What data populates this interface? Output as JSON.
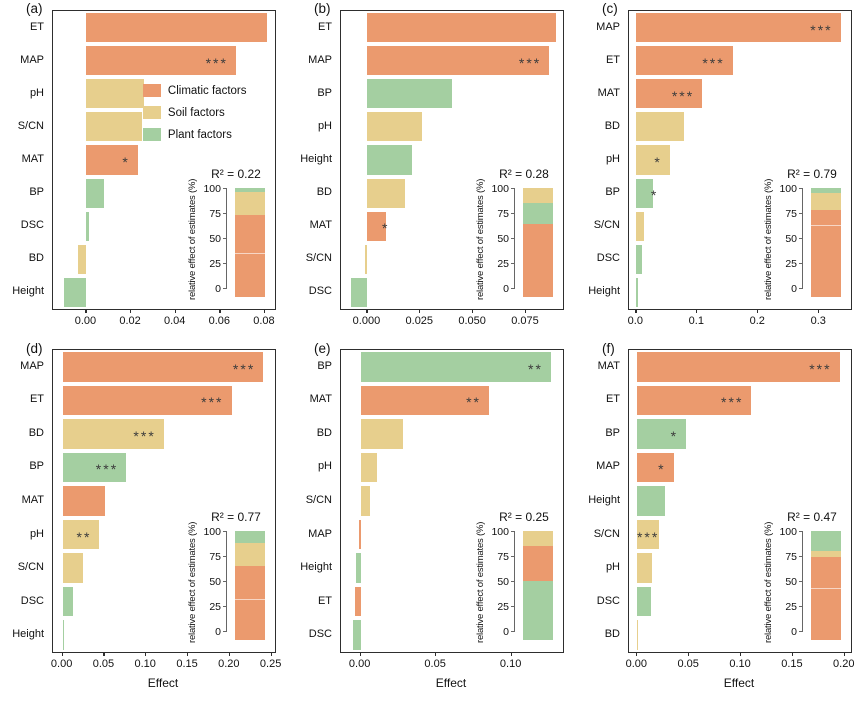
{
  "figure": {
    "background": "#ffffff"
  },
  "colors": {
    "climatic": "#EB9A6E",
    "soil": "#E7CF8D",
    "plant": "#A4CFA1"
  },
  "legend": {
    "items": [
      {
        "label": "Climatic factors",
        "group": "climatic"
      },
      {
        "label": "Soil factors",
        "group": "soil"
      },
      {
        "label": "Plant factors",
        "group": "plant"
      }
    ]
  },
  "inset": {
    "ylabel": "relative effect of estimates (%)",
    "yticks": [
      0,
      25,
      50,
      75,
      100
    ]
  },
  "chart_data": [
    {
      "type": "bar",
      "panel": "(a)",
      "orientation": "horizontal",
      "xlabel": "",
      "r2_label": "R² = 0.22",
      "show_legend": true,
      "xlim": [
        -0.015,
        0.0845
      ],
      "xticks": [
        {
          "v": 0,
          "label": "0.00"
        },
        {
          "v": 0.02,
          "label": "0.02"
        },
        {
          "v": 0.04,
          "label": "0.04"
        },
        {
          "v": 0.06,
          "label": "0.06"
        },
        {
          "v": 0.08,
          "label": "0.08"
        }
      ],
      "bars": [
        {
          "cat": "ET",
          "value": 0.081,
          "group": "climatic",
          "sig": ""
        },
        {
          "cat": "MAP",
          "value": 0.067,
          "group": "climatic",
          "sig": "***"
        },
        {
          "cat": "pH",
          "value": 0.026,
          "group": "soil",
          "sig": ""
        },
        {
          "cat": "S/CN",
          "value": 0.025,
          "group": "soil",
          "sig": ""
        },
        {
          "cat": "MAT",
          "value": 0.023,
          "group": "climatic",
          "sig": "*"
        },
        {
          "cat": "BP",
          "value": 0.008,
          "group": "plant",
          "sig": ""
        },
        {
          "cat": "DSC",
          "value": 0.001,
          "group": "plant",
          "sig": ""
        },
        {
          "cat": "BD",
          "value": -0.004,
          "group": "soil",
          "sig": ""
        },
        {
          "cat": "Height",
          "value": -0.01,
          "group": "plant",
          "sig": ""
        }
      ],
      "inset_stack": [
        {
          "group": "climatic",
          "pct": 73
        },
        {
          "group": "soil",
          "pct": 23
        },
        {
          "group": "plant",
          "pct": 4
        }
      ],
      "inset_dividers": [
        35
      ]
    },
    {
      "type": "bar",
      "panel": "(b)",
      "orientation": "horizontal",
      "xlabel": "",
      "r2_label": "R² = 0.28",
      "show_legend": false,
      "xlim": [
        -0.0125,
        0.0925
      ],
      "xticks": [
        {
          "v": 0,
          "label": "0.000"
        },
        {
          "v": 0.025,
          "label": "0.025"
        },
        {
          "v": 0.05,
          "label": "0.050"
        },
        {
          "v": 0.075,
          "label": "0.075"
        }
      ],
      "bars": [
        {
          "cat": "ET",
          "value": 0.089,
          "group": "climatic",
          "sig": ""
        },
        {
          "cat": "MAP",
          "value": 0.086,
          "group": "climatic",
          "sig": "***"
        },
        {
          "cat": "BP",
          "value": 0.04,
          "group": "plant",
          "sig": ""
        },
        {
          "cat": "pH",
          "value": 0.026,
          "group": "soil",
          "sig": ""
        },
        {
          "cat": "Height",
          "value": 0.021,
          "group": "plant",
          "sig": ""
        },
        {
          "cat": "BD",
          "value": 0.018,
          "group": "soil",
          "sig": ""
        },
        {
          "cat": "MAT",
          "value": 0.009,
          "group": "climatic",
          "sig": "*"
        },
        {
          "cat": "S/CN",
          "value": -0.001,
          "group": "soil",
          "sig": ""
        },
        {
          "cat": "DSC",
          "value": -0.008,
          "group": "plant",
          "sig": ""
        }
      ],
      "inset_stack": [
        {
          "group": "climatic",
          "pct": 64
        },
        {
          "group": "plant",
          "pct": 21
        },
        {
          "group": "soil",
          "pct": 15
        }
      ],
      "inset_dividers": []
    },
    {
      "type": "bar",
      "panel": "(c)",
      "orientation": "horizontal",
      "xlabel": "",
      "r2_label": "R² = 0.79",
      "show_legend": false,
      "xlim": [
        -0.012,
        0.352
      ],
      "xticks": [
        {
          "v": 0,
          "label": "0.0"
        },
        {
          "v": 0.1,
          "label": "0.1"
        },
        {
          "v": 0.2,
          "label": "0.2"
        },
        {
          "v": 0.3,
          "label": "0.3"
        }
      ],
      "bars": [
        {
          "cat": "MAP",
          "value": 0.335,
          "group": "climatic",
          "sig": "***"
        },
        {
          "cat": "ET",
          "value": 0.158,
          "group": "climatic",
          "sig": "***"
        },
        {
          "cat": "MAT",
          "value": 0.108,
          "group": "climatic",
          "sig": "***"
        },
        {
          "cat": "BD",
          "value": 0.078,
          "group": "soil",
          "sig": ""
        },
        {
          "cat": "pH",
          "value": 0.055,
          "group": "soil",
          "sig": "*"
        },
        {
          "cat": "BP",
          "value": 0.028,
          "group": "plant",
          "sig": "*"
        },
        {
          "cat": "S/CN",
          "value": 0.013,
          "group": "soil",
          "sig": ""
        },
        {
          "cat": "DSC",
          "value": 0.01,
          "group": "plant",
          "sig": ""
        },
        {
          "cat": "Height",
          "value": 0.002,
          "group": "plant",
          "sig": ""
        }
      ],
      "inset_stack": [
        {
          "group": "climatic",
          "pct": 78
        },
        {
          "group": "soil",
          "pct": 17
        },
        {
          "group": "plant",
          "pct": 5
        }
      ],
      "inset_dividers": [
        63
      ]
    },
    {
      "type": "bar",
      "panel": "(d)",
      "orientation": "horizontal",
      "xlabel": "Effect",
      "r2_label": "R² = 0.77",
      "show_legend": false,
      "xlim": [
        -0.0115,
        0.254
      ],
      "xticks": [
        {
          "v": 0,
          "label": "0.00"
        },
        {
          "v": 0.05,
          "label": "0.05"
        },
        {
          "v": 0.1,
          "label": "0.10"
        },
        {
          "v": 0.15,
          "label": "0.15"
        },
        {
          "v": 0.2,
          "label": "0.20"
        },
        {
          "v": 0.25,
          "label": "0.25"
        }
      ],
      "bars": [
        {
          "cat": "MAP",
          "value": 0.24,
          "group": "climatic",
          "sig": "***"
        },
        {
          "cat": "ET",
          "value": 0.202,
          "group": "climatic",
          "sig": "***"
        },
        {
          "cat": "BD",
          "value": 0.121,
          "group": "soil",
          "sig": "***"
        },
        {
          "cat": "BP",
          "value": 0.076,
          "group": "plant",
          "sig": "***"
        },
        {
          "cat": "MAT",
          "value": 0.051,
          "group": "climatic",
          "sig": ""
        },
        {
          "cat": "pH",
          "value": 0.044,
          "group": "soil",
          "sig": "**"
        },
        {
          "cat": "S/CN",
          "value": 0.024,
          "group": "soil",
          "sig": ""
        },
        {
          "cat": "DSC",
          "value": 0.013,
          "group": "plant",
          "sig": ""
        },
        {
          "cat": "Height",
          "value": 0.002,
          "group": "plant",
          "sig": ""
        }
      ],
      "inset_stack": [
        {
          "group": "climatic",
          "pct": 65
        },
        {
          "group": "soil",
          "pct": 23
        },
        {
          "group": "plant",
          "pct": 12
        }
      ],
      "inset_dividers": [
        32
      ]
    },
    {
      "type": "bar",
      "panel": "(e)",
      "orientation": "horizontal",
      "xlabel": "Effect",
      "r2_label": "R² = 0.25",
      "show_legend": false,
      "xlim": [
        -0.013,
        0.134
      ],
      "xticks": [
        {
          "v": 0,
          "label": "0.00"
        },
        {
          "v": 0.05,
          "label": "0.05"
        },
        {
          "v": 0.1,
          "label": "0.10"
        }
      ],
      "bars": [
        {
          "cat": "BP",
          "value": 0.126,
          "group": "plant",
          "sig": "**"
        },
        {
          "cat": "MAT",
          "value": 0.085,
          "group": "climatic",
          "sig": "**"
        },
        {
          "cat": "BD",
          "value": 0.028,
          "group": "soil",
          "sig": ""
        },
        {
          "cat": "pH",
          "value": 0.011,
          "group": "soil",
          "sig": ""
        },
        {
          "cat": "S/CN",
          "value": 0.006,
          "group": "soil",
          "sig": ""
        },
        {
          "cat": "MAP",
          "value": -0.001,
          "group": "climatic",
          "sig": ""
        },
        {
          "cat": "Height",
          "value": -0.003,
          "group": "plant",
          "sig": ""
        },
        {
          "cat": "ET",
          "value": -0.004,
          "group": "climatic",
          "sig": ""
        },
        {
          "cat": "DSC",
          "value": -0.005,
          "group": "plant",
          "sig": ""
        }
      ],
      "inset_stack": [
        {
          "group": "plant",
          "pct": 50
        },
        {
          "group": "climatic",
          "pct": 35
        },
        {
          "group": "soil",
          "pct": 15
        }
      ],
      "inset_dividers": []
    },
    {
      "type": "bar",
      "panel": "(f)",
      "orientation": "horizontal",
      "xlabel": "Effect",
      "r2_label": "R² = 0.47",
      "show_legend": false,
      "xlim": [
        -0.008,
        0.206
      ],
      "xticks": [
        {
          "v": 0,
          "label": "0.00"
        },
        {
          "v": 0.05,
          "label": "0.05"
        },
        {
          "v": 0.1,
          "label": "0.10"
        },
        {
          "v": 0.15,
          "label": "0.15"
        },
        {
          "v": 0.2,
          "label": "0.20"
        }
      ],
      "bars": [
        {
          "cat": "MAT",
          "value": 0.195,
          "group": "climatic",
          "sig": "***"
        },
        {
          "cat": "ET",
          "value": 0.11,
          "group": "climatic",
          "sig": "***"
        },
        {
          "cat": "BP",
          "value": 0.047,
          "group": "plant",
          "sig": "*"
        },
        {
          "cat": "MAP",
          "value": 0.035,
          "group": "climatic",
          "sig": "*"
        },
        {
          "cat": "Height",
          "value": 0.027,
          "group": "plant",
          "sig": ""
        },
        {
          "cat": "S/CN",
          "value": 0.021,
          "group": "soil",
          "sig": "***"
        },
        {
          "cat": "pH",
          "value": 0.014,
          "group": "soil",
          "sig": ""
        },
        {
          "cat": "DSC",
          "value": 0.013,
          "group": "plant",
          "sig": ""
        },
        {
          "cat": "BD",
          "value": 0.001,
          "group": "soil",
          "sig": ""
        }
      ],
      "inset_stack": [
        {
          "group": "climatic",
          "pct": 74
        },
        {
          "group": "soil",
          "pct": 6
        },
        {
          "group": "plant",
          "pct": 20
        }
      ],
      "inset_dividers": [
        43
      ]
    }
  ]
}
